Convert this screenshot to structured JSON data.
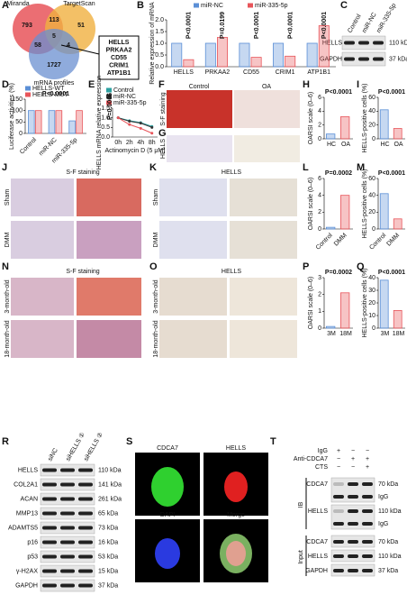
{
  "panel_labels": [
    "A",
    "B",
    "C",
    "D",
    "E",
    "F",
    "G",
    "H",
    "I",
    "J",
    "K",
    "L",
    "M",
    "N",
    "O",
    "P",
    "Q",
    "R",
    "S",
    "T"
  ],
  "venn": {
    "sets": [
      "Miranda",
      "TargetScan",
      "mRNA profiles"
    ],
    "regions": [
      "793",
      "113",
      "51",
      "58",
      "5",
      "4",
      "1727"
    ],
    "genes": [
      "HELLS",
      "PRKAA2",
      "CD55",
      "CRIM1",
      "ATP1B1"
    ]
  },
  "blot_c": {
    "columns": [
      "Control",
      "miR-NC",
      "miR-335-5p"
    ],
    "rows": [
      {
        "label": "HELLS",
        "size": "110 kDa"
      },
      {
        "label": "GAPDH",
        "size": "37 kDa"
      }
    ]
  },
  "histology": {
    "F": {
      "row_label": "S-F staining",
      "columns": [
        "Control",
        "OA"
      ]
    },
    "G": {
      "row_label": "HELLS"
    },
    "J": {
      "title": "S-F staining",
      "rows": [
        "Sham",
        "DMM"
      ]
    },
    "K": {
      "title": "HELLS",
      "rows": [
        "Sham",
        "DMM"
      ]
    },
    "N": {
      "title": "S-F staining",
      "rows": [
        "3-month-old",
        "18-month-old"
      ]
    },
    "O": {
      "title": "HELLS",
      "rows": [
        "3-month-old",
        "18-month-old"
      ]
    }
  },
  "blot_r": {
    "columns": [
      "siNC",
      "siHELLS ①",
      "siHELLS ②"
    ],
    "rows": [
      {
        "label": "HELLS",
        "size": "110 kDa"
      },
      {
        "label": "COL2A1",
        "size": "141 kDa"
      },
      {
        "label": "ACAN",
        "size": "261 kDa"
      },
      {
        "label": "MMP13",
        "size": "65 kDa"
      },
      {
        "label": "ADAMTS5",
        "size": "73 kDa"
      },
      {
        "label": "p16",
        "size": "16 kDa"
      },
      {
        "label": "p53",
        "size": "53 kDa"
      },
      {
        "label": "γ-H2AX",
        "size": "15 kDa"
      },
      {
        "label": "GAPDH",
        "size": "37 kDa"
      }
    ]
  },
  "if_panels": [
    "CDCA7",
    "HELLS",
    "DAPI",
    "Merge"
  ],
  "ip": {
    "conditions": [
      {
        "label": "IgG",
        "marks": [
          "+",
          "−",
          "−"
        ]
      },
      {
        "label": "Anti-CDCA7",
        "marks": [
          "−",
          "+",
          "+"
        ]
      },
      {
        "label": "CTS",
        "marks": [
          "−",
          "−",
          "+"
        ]
      }
    ],
    "sections": [
      {
        "label": "IB",
        "rows": [
          {
            "label": "CDCA7",
            "size": "70 kDa",
            "extra": "IgG"
          },
          {
            "label": "HELLS",
            "size": "110 kDa",
            "extra": "IgG"
          }
        ]
      },
      {
        "label": "Input",
        "rows": [
          {
            "label": "CDCA7",
            "size": "70 kDa"
          },
          {
            "label": "HELLS",
            "size": "110 kDa"
          },
          {
            "label": "GAPDH",
            "size": "37 kDa"
          }
        ]
      }
    ]
  },
  "chart_data": [
    {
      "type": "bar",
      "ylabel": "Relative expression of mRNA",
      "categories": [
        "HELLS",
        "PRKAA2",
        "CD55",
        "CRIM1",
        "ATP1B1"
      ],
      "series": [
        {
          "name": "miR-NC",
          "color": "#5b8fd6",
          "values": [
            1.0,
            1.0,
            1.0,
            1.0,
            1.0
          ]
        },
        {
          "name": "miR-335-5p",
          "color": "#e8555a",
          "values": [
            0.3,
            1.25,
            0.4,
            0.45,
            1.75
          ]
        }
      ],
      "ylim": [
        0,
        2.0
      ],
      "yticks": [
        {
          "value": 0,
          "label": "0.0"
        },
        {
          "value": 0.5,
          "label": "0.5"
        },
        {
          "value": 1,
          "label": "1.0"
        },
        {
          "value": 1.5,
          "label": "1.5"
        },
        {
          "value": 2,
          "label": "2.0"
        }
      ],
      "annotations": [
        "P<0.0001",
        "P=0.0199",
        "P<0.0001",
        "P<0.0001",
        "P<0.0001"
      ]
    },
    {
      "type": "bar",
      "ylabel": "Luciferase activities (%)",
      "categories": [
        "Control",
        "miR-NC",
        "miR-335-5p"
      ],
      "series": [
        {
          "name": "HELLS-WT",
          "color": "#5b8fd6",
          "values": [
            100,
            100,
            55
          ]
        },
        {
          "name": "HELLS-MUT",
          "color": "#e8555a",
          "values": [
            100,
            100,
            100
          ]
        }
      ],
      "ylim": [
        0,
        150
      ],
      "yticks": [
        0,
        50,
        100,
        150
      ],
      "annotations": [
        "P<0.0001"
      ]
    },
    {
      "type": "line",
      "ylabel": "HELLS mRNA relative expression",
      "xlabel": "Actinomycin D (5 μM)",
      "categories": [
        "0h",
        "2h",
        "4h",
        "8h"
      ],
      "series": [
        {
          "name": "Control",
          "color": "#2ca0a0",
          "values": [
            1.0,
            0.85,
            0.75,
            0.55
          ]
        },
        {
          "name": "miR-NC",
          "color": "#333333",
          "values": [
            1.0,
            0.82,
            0.72,
            0.5
          ]
        },
        {
          "name": "miR-335-5p",
          "color": "#e8555a",
          "values": [
            1.0,
            0.65,
            0.45,
            0.2
          ]
        }
      ],
      "ylim": [
        0,
        1.5
      ],
      "yticks": [
        {
          "value": 0,
          "label": "0.0"
        },
        {
          "value": 0.5,
          "label": "0.5"
        },
        {
          "value": 1,
          "label": "1.0"
        },
        {
          "value": 1.5,
          "label": "1.5"
        }
      ],
      "annotations": [
        "P=0.0006"
      ]
    },
    {
      "type": "bar",
      "ylabel": "OARSI scale (0–6)",
      "categories": [
        "HC",
        "OA"
      ],
      "values": [
        0.7,
        3.2
      ],
      "colors": [
        "#5b8fd6",
        "#e8555a"
      ],
      "ylim": [
        0,
        6
      ],
      "yticks": [
        0,
        2,
        4,
        6
      ],
      "annotations": [
        "P<0.0001"
      ]
    },
    {
      "type": "bar",
      "ylabel": "HELLS-positive cells (%)",
      "categories": [
        "HC",
        "OA"
      ],
      "values": [
        42,
        15
      ],
      "colors": [
        "#5b8fd6",
        "#e8555a"
      ],
      "ylim": [
        0,
        60
      ],
      "yticks": [
        0,
        20,
        40,
        60
      ],
      "annotations": [
        "P<0.0001"
      ]
    },
    {
      "type": "bar",
      "ylabel": "OARSI scale (0–6)",
      "categories": [
        "Control",
        "DMM"
      ],
      "values": [
        0.2,
        4.0
      ],
      "colors": [
        "#5b8fd6",
        "#e8555a"
      ],
      "ylim": [
        0,
        6
      ],
      "yticks": [
        0,
        2,
        4,
        6
      ],
      "annotations": [
        "P=0.0002"
      ]
    },
    {
      "type": "bar",
      "ylabel": "HELLS-positive cells (%)",
      "categories": [
        "Control",
        "DMM"
      ],
      "values": [
        42,
        12
      ],
      "colors": [
        "#5b8fd6",
        "#e8555a"
      ],
      "ylim": [
        0,
        60
      ],
      "yticks": [
        0,
        20,
        40,
        60
      ],
      "annotations": [
        "P<0.0001"
      ]
    },
    {
      "type": "bar",
      "ylabel": "OARSI scale (0–6)",
      "categories": [
        "3M",
        "18M"
      ],
      "values": [
        0.1,
        2.1
      ],
      "colors": [
        "#5b8fd6",
        "#e8555a"
      ],
      "ylim": [
        0,
        3
      ],
      "yticks": [
        0,
        1,
        2,
        3
      ],
      "annotations": [
        "P=0.0002"
      ]
    },
    {
      "type": "bar",
      "ylabel": "HELLS-positive cells (%)",
      "categories": [
        "3M",
        "18M"
      ],
      "values": [
        38,
        14
      ],
      "colors": [
        "#5b8fd6",
        "#e8555a"
      ],
      "ylim": [
        0,
        40
      ],
      "yticks": [
        0,
        10,
        20,
        30,
        40
      ],
      "annotations": [
        "P<0.0001"
      ]
    }
  ]
}
